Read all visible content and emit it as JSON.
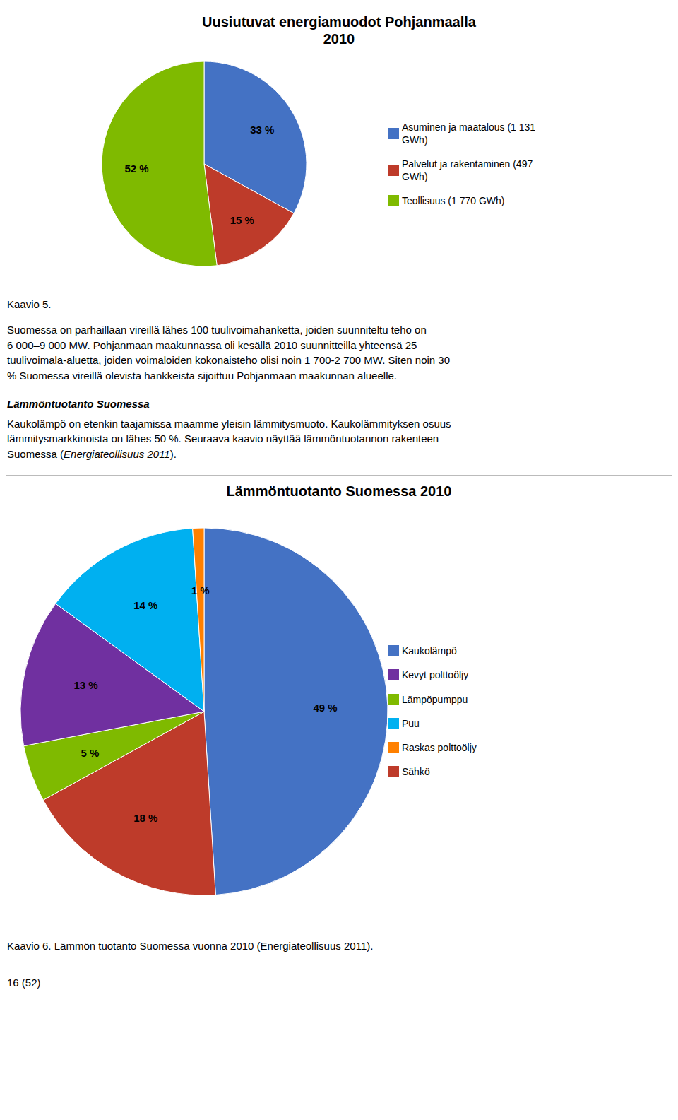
{
  "chart_data": [
    {
      "type": "pie",
      "title": "Uusiutuvat energiamuodot Pohjanmaalla\n2010",
      "categories": [
        "Asuminen ja maatalous (1 131\nGWh)",
        "Palvelut ja rakentaminen (497\nGWh)",
        "Teollisuus (1 770 GWh)"
      ],
      "values": [
        33,
        15,
        52
      ],
      "value_labels": [
        "33 %",
        "15 %",
        "52 %"
      ],
      "colors": [
        "#4472C4",
        "#BE3B2A",
        "#7FBA00"
      ],
      "data_labels": true,
      "legend": "right",
      "annotations": [
        "Kaavio 5.",
        "Suomessa on parhaillaan vireillä lähes 100 tuulivoimahanketta, joiden suunniteltu teho on\n6 000–9 000 MW. Pohjanmaan maakunnassa oli kesällä 2010 suunnitteilla yhteensä 25\ntuulivoimala-aluetta, joiden voimaloiden kokonaisteho olisi noin 1 700-2 700 MW. Siten noin 30\n% Suomessa vireillä olevista hankkeista sijoittuu Pohjanmaan maakunnan alueelle.",
        "Lämmöntuotanto Suomessa",
        "Kaukolämpö on etenkin taajamissa maamme yleisin lämmitysmuoto. Kaukolämmityksen osuus",
        "lämmitysmarkkinoista on lähes 50 %. Seuraava kaavio näyttää lämmöntuotannon rakenteen",
        "Suomessa (",
        "Energiateollisuus 2011",
        ")."
      ]
    },
    {
      "type": "pie",
      "title": "Lämmöntuotanto Suomessa 2010",
      "categories": [
        "Kaukolämpö",
        "Sähkö",
        "Lämpöpumppu",
        "Kevyt polttoöljy",
        "Puu",
        "Raskas polttoöljy"
      ],
      "values": [
        49,
        18,
        5,
        13,
        14,
        1
      ],
      "value_labels": [
        "49 %",
        "18 %",
        "5 %",
        "13 %",
        "14 %",
        "1 %"
      ],
      "colors": [
        "#4472C4",
        "#BE3B2A",
        "#7FBA00",
        "#7030A0",
        "#00B0F0",
        "#FF8000"
      ],
      "data_labels": true,
      "legend": "right",
      "annotations": [
        "Kaavio 6. Lämmön tuotanto Suomessa vuonna 2010 (Energiateollisuus 2011).",
        "16 (52)"
      ]
    }
  ]
}
